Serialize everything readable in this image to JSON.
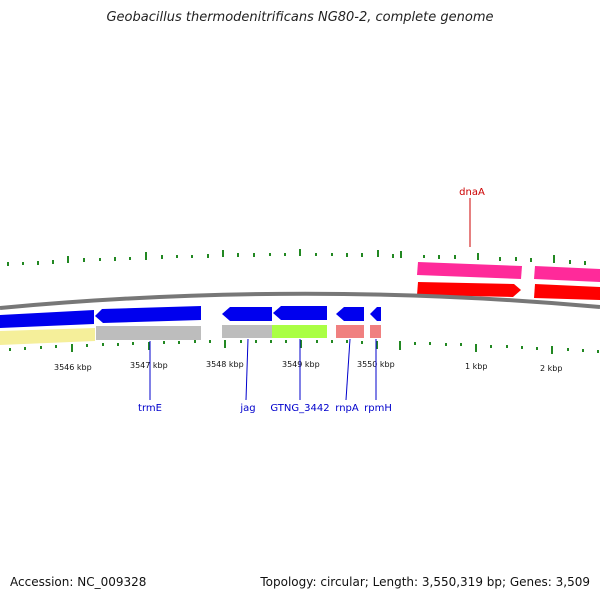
{
  "title": "Geobacillus thermodenitrificans NG80-2, complete genome",
  "footer": {
    "accession": "Accession: NC_009328",
    "summary": "Topology: circular; Length: 3,550,319 bp; Genes: 3,509"
  },
  "scale_labels": [
    "3546 kbp",
    "3547 kbp",
    "3548 kbp",
    "3549 kbp",
    "3550 kbp",
    "1 kbp",
    "2 kbp"
  ],
  "genes": [
    {
      "name": "trmE",
      "color": "#0000cc"
    },
    {
      "name": "jag",
      "color": "#0000cc"
    },
    {
      "name": "GTNG_3442",
      "color": "#0000cc"
    },
    {
      "name": "rnpA",
      "color": "#0000cc"
    },
    {
      "name": "rpmH",
      "color": "#0000cc"
    },
    {
      "name": "dnaA",
      "color": "#cc0000"
    }
  ],
  "colors": {
    "cds_strand": "#0000ee",
    "gene_forward": "#ff0000",
    "gene_forward_alt": "#ff2a9a",
    "other_gray": "#bdbdbd",
    "light_green": "#aaff44",
    "salmon": "#f08080",
    "pale_yellow": "#f5ef9a",
    "backbone": "#777777",
    "tick": "#228822"
  }
}
